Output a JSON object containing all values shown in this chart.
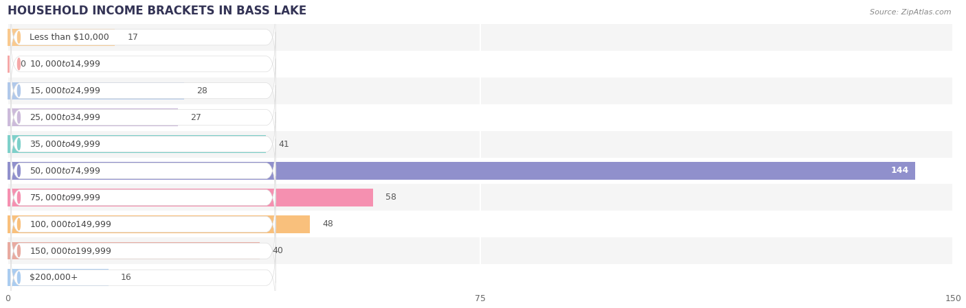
{
  "title": "HOUSEHOLD INCOME BRACKETS IN BASS LAKE",
  "source": "Source: ZipAtlas.com",
  "categories": [
    "Less than $10,000",
    "$10,000 to $14,999",
    "$15,000 to $24,999",
    "$25,000 to $34,999",
    "$35,000 to $49,999",
    "$50,000 to $74,999",
    "$75,000 to $99,999",
    "$100,000 to $149,999",
    "$150,000 to $199,999",
    "$200,000+"
  ],
  "values": [
    17,
    0,
    28,
    27,
    41,
    144,
    58,
    48,
    40,
    16
  ],
  "bar_colors": [
    "#f9c98e",
    "#f5a8a8",
    "#b0c8ea",
    "#ccbada",
    "#7ed0ca",
    "#9090cc",
    "#f590b0",
    "#f9c07c",
    "#e8aaa0",
    "#aaccf0"
  ],
  "label_bg_colors": [
    "#f9c98e",
    "#f5a8a8",
    "#b0c8ea",
    "#ccbada",
    "#7ed0ca",
    "#9090cc",
    "#f590b0",
    "#f9c07c",
    "#e8aaa0",
    "#aaccf0"
  ],
  "xlim": [
    0,
    150
  ],
  "xticks": [
    0,
    75,
    150
  ],
  "max_val": 150,
  "background_color": "#ffffff",
  "row_colors": [
    "#f5f5f5",
    "#ffffff"
  ],
  "title_fontsize": 12,
  "label_fontsize": 9,
  "value_fontsize": 9,
  "bar_height": 0.65,
  "highlight_index": 5,
  "highlight_text_color": "#ffffff",
  "normal_text_color": "#555555"
}
